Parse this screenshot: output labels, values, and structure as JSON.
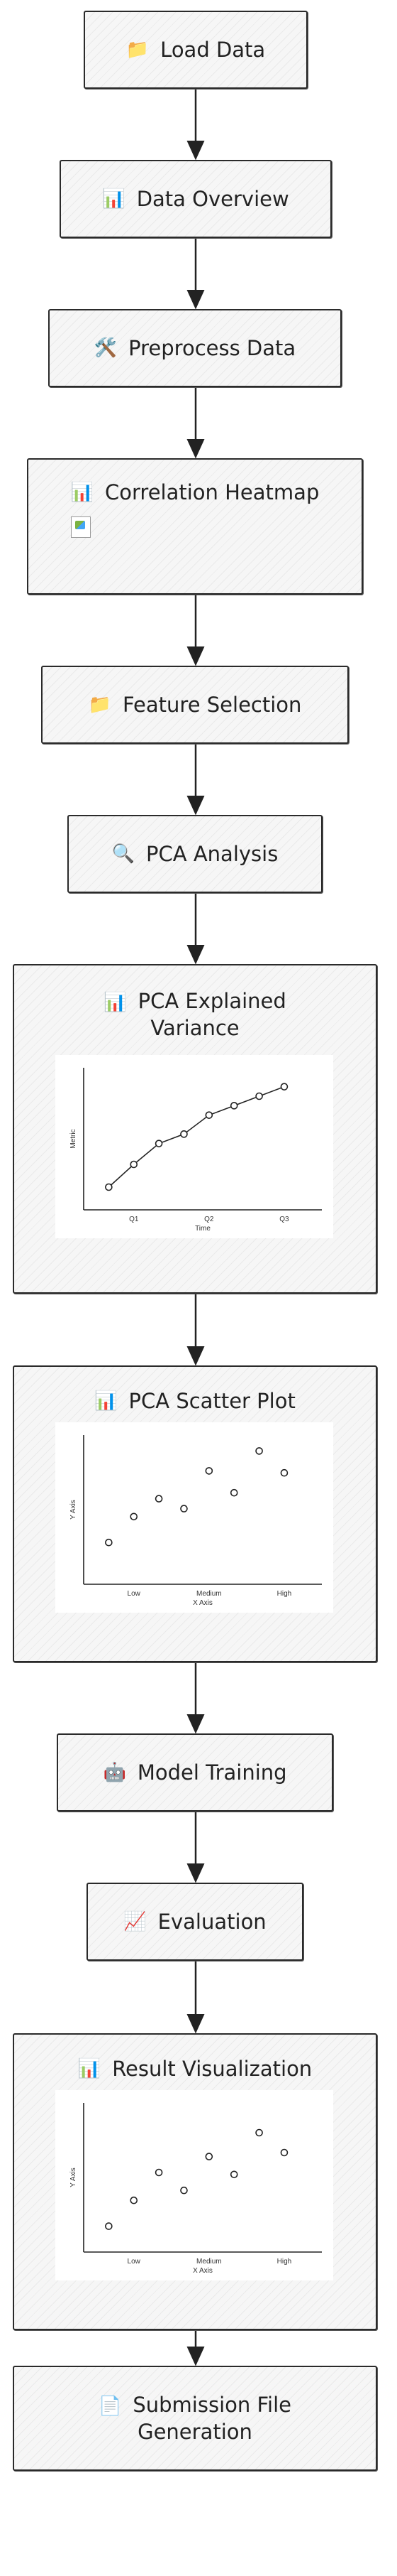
{
  "nodes": {
    "load_data": {
      "icon": "📁",
      "label": "Load Data"
    },
    "data_overview": {
      "icon": "📊",
      "label": "Data Overview"
    },
    "preprocess": {
      "icon": "🛠️",
      "label": "Preprocess Data"
    },
    "correlation": {
      "icon": "📊",
      "label": "Correlation Heatmap"
    },
    "feature_selection": {
      "icon": "📁",
      "label": "Feature Selection"
    },
    "pca_analysis": {
      "icon": "🔍",
      "label": "PCA Analysis"
    },
    "pca_variance": {
      "icon": "📊",
      "label": "PCA Explained Variance"
    },
    "pca_scatter": {
      "icon": "📊",
      "label": "PCA Scatter Plot"
    },
    "model_training": {
      "icon": "🤖",
      "label": "Model Training"
    },
    "evaluation": {
      "icon": "📈",
      "label": "Evaluation"
    },
    "result_viz": {
      "icon": "📊",
      "label": "Result Visualization"
    },
    "submission": {
      "icon": "📄",
      "label": "Submission File Generation"
    }
  },
  "chart_data": [
    {
      "type": "line",
      "x": [
        1,
        2,
        3,
        4,
        5,
        6,
        7,
        8
      ],
      "y": [
        1.2,
        2.4,
        3.5,
        4.0,
        5.0,
        5.5,
        6.0,
        6.5
      ],
      "tick_labels": [
        "Q1",
        "Q2",
        "Q3"
      ],
      "tick_positions": [
        2,
        5,
        8
      ],
      "xlabel": "Time",
      "ylabel": "Metric",
      "xlim": [
        0,
        9.5
      ],
      "ylim": [
        0,
        7.5
      ]
    },
    {
      "type": "scatter",
      "x": [
        1,
        2,
        3,
        4,
        5,
        6,
        7,
        8
      ],
      "y": [
        2.1,
        3.4,
        4.3,
        3.8,
        5.7,
        4.6,
        6.7,
        5.6
      ],
      "tick_labels": [
        "Low",
        "Medium",
        "High"
      ],
      "tick_positions": [
        2,
        5,
        8
      ],
      "xlabel": "X Axis",
      "ylabel": "Y Axis",
      "xlim": [
        0,
        9.5
      ],
      "ylim": [
        0,
        7.5
      ]
    },
    {
      "type": "scatter",
      "x": [
        1,
        2,
        3,
        4,
        5,
        6,
        7,
        8
      ],
      "y": [
        1.3,
        2.6,
        4.0,
        3.1,
        4.8,
        3.9,
        6.0,
        5.0
      ],
      "tick_labels": [
        "Low",
        "Medium",
        "High"
      ],
      "tick_positions": [
        2,
        5,
        8
      ],
      "xlabel": "X Axis",
      "ylabel": "Y Axis",
      "xlim": [
        0,
        9.5
      ],
      "ylim": [
        0,
        7.5
      ]
    }
  ]
}
